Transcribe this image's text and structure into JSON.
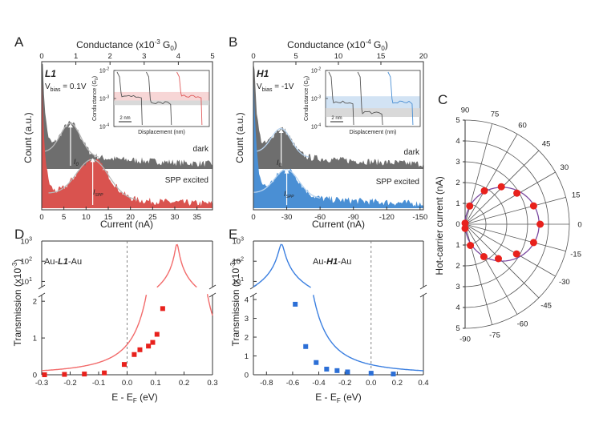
{
  "colors": {
    "dark_hist": "#6e6e6e",
    "spp_hist": "#d9534f",
    "h1_dark_hist": "#6e6e6e",
    "h1_spp_hist": "#4a8fd4",
    "fit_red": "#f26b6b",
    "fit_blue": "#3b7fe0",
    "marker_red": "#e8211c",
    "marker_blue": "#2c6fd6",
    "polar_fit": "#7b4aa0"
  },
  "chart_data": [
    {
      "panel": "A",
      "type": "histogram",
      "molecule": "L1",
      "bias_text": "V",
      "bias_sub": "bias",
      "bias_value": " = 0.1V",
      "top_axis_title": "Conductance (x10",
      "top_axis_exp": "-3",
      "top_axis_unit": " G",
      "top_axis_unit_sub": "0",
      "top_axis_suffix": ")",
      "top_ticks": [
        "0",
        "1",
        "2",
        "3",
        "4",
        "5"
      ],
      "top_xlim": [
        0,
        5
      ],
      "xlabel": "Current (nA)",
      "xlim": [
        0,
        38.5
      ],
      "x_ticks": [
        "0",
        "5",
        "10",
        "15",
        "20",
        "25",
        "30",
        "35"
      ],
      "x_tick_values": [
        0,
        5,
        10,
        15,
        20,
        25,
        30,
        35
      ],
      "ylabel": "Count (a.u.)",
      "series": [
        {
          "name": "dark",
          "peak_center": 6.5,
          "peak_sigma": 2.3,
          "peak_amp": 0.42,
          "floor": 0.22
        },
        {
          "name": "SPP excited",
          "peak_center": 11.5,
          "peak_sigma": 3.6,
          "peak_amp": 0.5,
          "floor": 0.2
        }
      ],
      "labels": {
        "dark": "dark",
        "spp": "SPP excited",
        "i0": "I",
        "i0_sub": "0",
        "ispp": "I",
        "ispp_sub": "SPP"
      },
      "inset": {
        "ylabel": "Conductance (G",
        "ylabel_sub": "0",
        "ylabel_end": ")",
        "xlabel": "Displacement (nm)",
        "y_ticks": [
          "10",
          "10",
          "10"
        ],
        "y_tick_exps": [
          "-2",
          "-3",
          "-4"
        ],
        "scale": "2 nm",
        "band_gray": [
          0.00058,
          0.00085
        ],
        "band_color": [
          0.00085,
          0.0017
        ]
      }
    },
    {
      "panel": "B",
      "type": "histogram",
      "molecule": "H1",
      "bias_text": "V",
      "bias_sub": "bias",
      "bias_value": " = -1V",
      "top_axis_title": "Conductance (x10",
      "top_axis_exp": "-4",
      "top_axis_unit": " G",
      "top_axis_unit_sub": "0",
      "top_axis_suffix": ")",
      "top_ticks": [
        "0",
        "5",
        "10",
        "15",
        "20"
      ],
      "top_xlim": [
        0,
        20
      ],
      "xlabel": "Current (nA)",
      "xlim": [
        0,
        -153
      ],
      "x_ticks": [
        "0",
        "-30",
        "-60",
        "-90",
        "-120",
        "-150"
      ],
      "x_tick_values": [
        0,
        -30,
        -60,
        -90,
        -120,
        -150
      ],
      "ylabel": "Count (a.u.)",
      "series": [
        {
          "name": "dark",
          "peak_center": -25,
          "peak_sigma": 9,
          "peak_amp": 0.35,
          "floor": 0.22
        },
        {
          "name": "SPP excited",
          "peak_center": -30,
          "peak_sigma": 11,
          "peak_amp": 0.35,
          "floor": 0.2
        }
      ],
      "labels": {
        "dark": "dark",
        "spp": "SPP excited",
        "i0": "I",
        "i0_sub": "0",
        "ispp": "I",
        "ispp_sub": "SPP"
      },
      "inset": {
        "ylabel": "Conductance (G",
        "ylabel_sub": "0",
        "ylabel_end": ")",
        "xlabel": "Displacement (nm)",
        "y_ticks": [
          "10",
          "10",
          "10"
        ],
        "y_tick_exps": [
          "-2",
          "-3",
          "-4"
        ],
        "scale": "2 nm",
        "band_gray": [
          0.00022,
          0.00045
        ],
        "band_color": [
          0.00045,
          0.0012
        ]
      }
    },
    {
      "panel": "C",
      "type": "polar",
      "ylabel": "Hot-carrier current (nA)",
      "r_max": 5,
      "r_ticks": [
        "5",
        "4",
        "3",
        "2",
        "1",
        "0",
        "1",
        "2",
        "3",
        "4",
        "5"
      ],
      "angle_labels": [
        "90",
        "75",
        "60",
        "45",
        "30",
        "15",
        "0",
        "-15",
        "-30",
        "-45",
        "-60",
        "-75",
        "-90"
      ],
      "angles_deg": [
        90,
        75,
        60,
        45,
        30,
        15,
        0,
        -15,
        -30,
        -45,
        -60,
        -75,
        -90
      ],
      "points": [
        {
          "angle": 90,
          "r": 0.05
        },
        {
          "angle": 76,
          "r": 0.9
        },
        {
          "angle": 60,
          "r": 1.85
        },
        {
          "angle": 46,
          "r": 2.5
        },
        {
          "angle": 31,
          "r": 2.9
        },
        {
          "angle": 15,
          "r": 3.4
        },
        {
          "angle": 0,
          "r": 3.6
        },
        {
          "angle": -15,
          "r": 3.4
        },
        {
          "angle": -30,
          "r": 2.85
        },
        {
          "angle": -46,
          "r": 2.3
        },
        {
          "angle": -60,
          "r": 1.8
        },
        {
          "angle": -76,
          "r": 1.05
        },
        {
          "angle": -90,
          "r": 0.2
        }
      ],
      "fit": "r = 3.55 cos(theta)"
    },
    {
      "panel": "D",
      "type": "scatter",
      "molecule_prefix": "Au-",
      "molecule": "L1",
      "molecule_suffix": "-Au",
      "xlabel": "E - E",
      "xlabel_sub": "F",
      "xlabel_unit": " (eV)",
      "ylabel": "Transmission (x10",
      "ylabel_exp": "-3",
      "ylabel_end": ")",
      "xlim": [
        -0.3,
        0.3
      ],
      "x_ticks": [
        "-0.3",
        "-0.2",
        "-0.1",
        "0.0",
        "0.1",
        "0.2",
        "0.3"
      ],
      "x_tick_values": [
        -0.3,
        -0.2,
        -0.1,
        0.0,
        0.1,
        0.2,
        0.3
      ],
      "ylim_lower": [
        0,
        2.2
      ],
      "y_ticks_lower": [
        "0",
        "1",
        "2"
      ],
      "ylim_upper_log": [
        5,
        1000
      ],
      "y_ticks_upper": [
        "10",
        "10",
        "10"
      ],
      "y_ticks_upper_exps": [
        "1",
        "2",
        "3"
      ],
      "resonance": {
        "E0": 0.175,
        "gamma": 0.006,
        "peak": 700
      },
      "points": [
        {
          "x": -0.29,
          "y": 0.0
        },
        {
          "x": -0.22,
          "y": 0.01
        },
        {
          "x": -0.15,
          "y": 0.02
        },
        {
          "x": -0.08,
          "y": 0.05
        },
        {
          "x": -0.01,
          "y": 0.28
        },
        {
          "x": 0.025,
          "y": 0.55
        },
        {
          "x": 0.045,
          "y": 0.68
        },
        {
          "x": 0.075,
          "y": 0.78
        },
        {
          "x": 0.09,
          "y": 0.88
        },
        {
          "x": 0.105,
          "y": 1.1
        },
        {
          "x": 0.125,
          "y": 1.8
        }
      ]
    },
    {
      "panel": "E",
      "type": "scatter",
      "molecule_prefix": "Au-",
      "molecule": "H1",
      "molecule_suffix": "-Au",
      "xlabel": "E - E",
      "xlabel_sub": "F",
      "xlabel_unit": " (eV)",
      "ylabel": "Transmission (x10",
      "ylabel_exp": "-3",
      "ylabel_end": ")",
      "xlim": [
        -0.9,
        0.4
      ],
      "x_ticks": [
        "-0.8",
        "-0.6",
        "-0.4",
        "-0.2",
        "0.0",
        "0.2",
        "0.4"
      ],
      "x_tick_values": [
        -0.8,
        -0.6,
        -0.4,
        -0.2,
        0.0,
        0.2,
        0.4
      ],
      "ylim_lower": [
        0,
        4.3
      ],
      "y_ticks_lower": [
        "0",
        "1",
        "2",
        "3",
        "4"
      ],
      "ylim_upper_log": [
        5,
        1000
      ],
      "y_ticks_upper": [
        "10",
        "10",
        "10"
      ],
      "y_ticks_upper_exps": [
        "1",
        "2",
        "3"
      ],
      "resonance": {
        "E0": -0.685,
        "gamma": 0.019,
        "peak": 700
      },
      "points": [
        {
          "x": -0.58,
          "y": 3.75
        },
        {
          "x": -0.5,
          "y": 1.5
        },
        {
          "x": -0.42,
          "y": 0.65
        },
        {
          "x": -0.34,
          "y": 0.3
        },
        {
          "x": -0.26,
          "y": 0.22
        },
        {
          "x": -0.18,
          "y": 0.15
        },
        {
          "x": 0.0,
          "y": 0.08
        },
        {
          "x": 0.17,
          "y": 0.04
        }
      ]
    }
  ]
}
